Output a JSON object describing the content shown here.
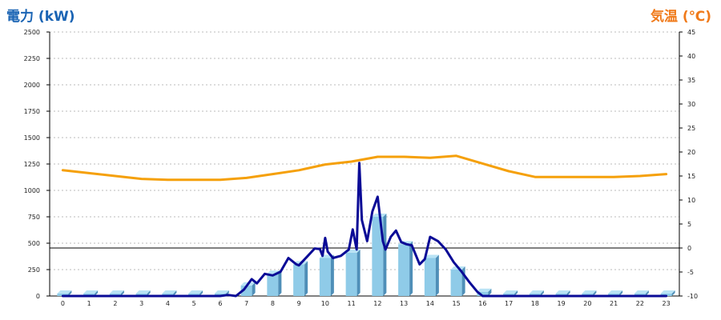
{
  "titles": {
    "left": "電力 (kW)",
    "right": "気温 (℃)"
  },
  "colors": {
    "bar_face": "#8fcbe8",
    "bar_side": "#4f8fb8",
    "bar_top": "#b9e3f5",
    "power_line": "#0a0a96",
    "temp_line": "#f5a00a",
    "grid": "#bbbbbb",
    "zero_line": "#000000"
  },
  "chart_data": {
    "type": "bar",
    "categories": [
      "0",
      "1",
      "2",
      "3",
      "4",
      "5",
      "6",
      "7",
      "8",
      "9",
      "10",
      "11",
      "12",
      "13",
      "14",
      "15",
      "16",
      "17",
      "18",
      "19",
      "20",
      "21",
      "22",
      "23"
    ],
    "y_left": {
      "label": "電力 (kW)",
      "ylim": [
        0,
        2500
      ],
      "ticks": [
        0,
        250,
        500,
        750,
        1000,
        1250,
        1500,
        1750,
        2000,
        2250,
        2500
      ]
    },
    "y_right": {
      "label": "気温 (℃)",
      "ylim": [
        -10,
        45
      ],
      "ticks": [
        -10,
        -5,
        0,
        5,
        10,
        15,
        20,
        25,
        30,
        35,
        40,
        45
      ]
    },
    "grid": true,
    "series": [
      {
        "type": "bar",
        "axis": "left",
        "values": [
          0,
          0,
          0,
          0,
          0,
          0,
          0,
          100,
          210,
          300,
          360,
          410,
          750,
          490,
          360,
          250,
          40,
          0,
          0,
          0,
          0,
          0,
          0,
          0
        ]
      },
      {
        "type": "line",
        "axis": "left",
        "x": [
          0,
          1,
          2,
          3,
          4,
          5,
          6,
          6.3,
          6.6,
          6.9,
          7.2,
          7.4,
          7.7,
          8.0,
          8.3,
          8.6,
          8.9,
          9.0,
          9.3,
          9.6,
          9.8,
          9.9,
          10.0,
          10.1,
          10.3,
          10.6,
          10.9,
          11.05,
          11.2,
          11.3,
          11.4,
          11.6,
          11.8,
          12.0,
          12.2,
          12.3,
          12.5,
          12.7,
          12.9,
          13.1,
          13.3,
          13.6,
          13.8,
          14.0,
          14.3,
          14.6,
          14.9,
          15.2,
          15.5,
          15.8,
          16.0,
          16.5,
          17,
          18,
          19,
          20,
          21,
          22,
          23
        ],
        "values": [
          0,
          0,
          0,
          0,
          0,
          0,
          0,
          10,
          0,
          60,
          160,
          120,
          210,
          195,
          230,
          360,
          300,
          290,
          370,
          450,
          445,
          380,
          550,
          420,
          360,
          380,
          440,
          630,
          440,
          1260,
          720,
          520,
          800,
          940,
          520,
          440,
          560,
          620,
          510,
          490,
          480,
          300,
          350,
          560,
          520,
          440,
          320,
          230,
          130,
          40,
          0,
          0,
          0,
          0,
          0,
          0,
          0,
          0,
          0
        ]
      },
      {
        "type": "line",
        "axis": "right",
        "x": [
          0,
          1,
          2,
          3,
          4,
          5,
          6,
          7,
          8,
          9,
          10,
          11,
          12,
          13,
          14,
          15,
          16,
          17,
          18,
          19,
          20,
          21,
          22,
          23
        ],
        "values": [
          16.2,
          15.6,
          15.0,
          14.4,
          14.2,
          14.2,
          14.2,
          14.6,
          15.4,
          16.2,
          17.4,
          18.0,
          19.0,
          19.0,
          18.8,
          19.2,
          17.6,
          16.0,
          14.8,
          14.8,
          14.8,
          14.8,
          15.0,
          15.4
        ]
      }
    ]
  }
}
